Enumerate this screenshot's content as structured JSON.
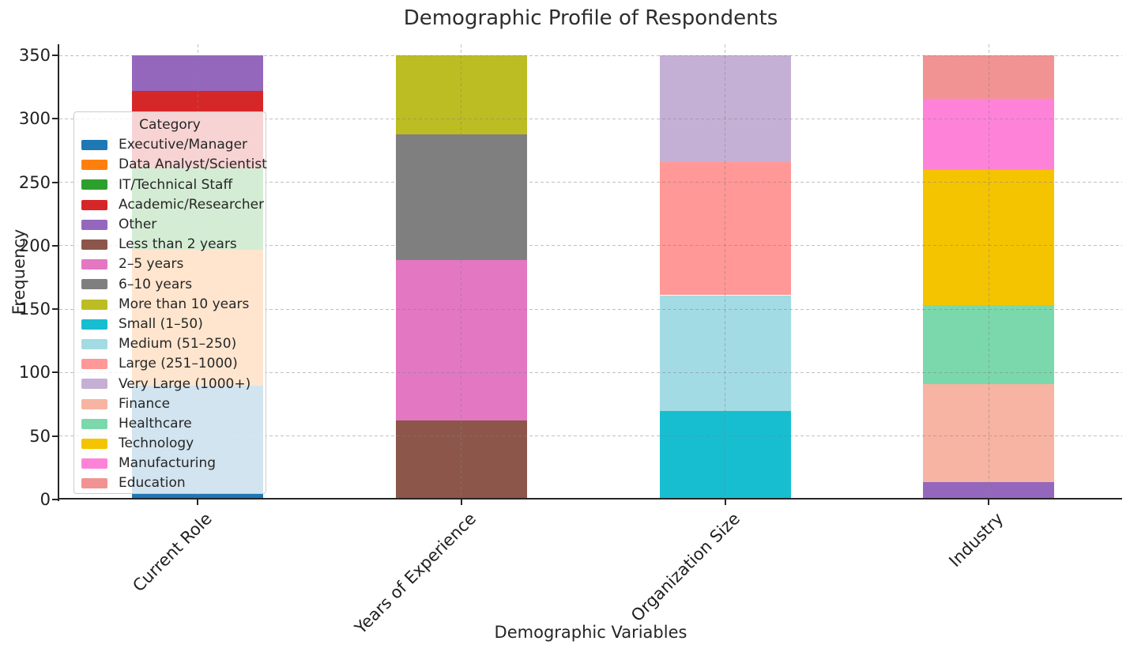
{
  "figure": {
    "title": "Demographic Profile of Respondents",
    "xlabel": "Demographic Variables",
    "ylabel": "Frequency"
  },
  "legend": {
    "title": "Category",
    "entries": [
      {
        "label": "Executive/Manager",
        "color": "#1f77b4"
      },
      {
        "label": "Data Analyst/Scientist",
        "color": "#ff7f0e"
      },
      {
        "label": "IT/Technical Staff",
        "color": "#2ca02c"
      },
      {
        "label": "Academic/Researcher",
        "color": "#d62728"
      },
      {
        "label": "Other",
        "color": "#9467bd"
      },
      {
        "label": "Less than 2 years",
        "color": "#8c564b"
      },
      {
        "label": "2–5 years",
        "color": "#e377c2"
      },
      {
        "label": "6–10 years",
        "color": "#7f7f7f"
      },
      {
        "label": "More than 10 years",
        "color": "#bcbd22"
      },
      {
        "label": "Small (1–50)",
        "color": "#17becf"
      },
      {
        "label": "Medium (51–250)",
        "color": "#a3dbe4"
      },
      {
        "label": "Large (251–1000)",
        "color": "#ff9896"
      },
      {
        "label": "Very Large (1000+)",
        "color": "#c5b0d5"
      },
      {
        "label": "Finance",
        "color": "#f7b4a2"
      },
      {
        "label": "Healthcare",
        "color": "#7bd8ac"
      },
      {
        "label": "Technology",
        "color": "#f4c400"
      },
      {
        "label": "Manufacturing",
        "color": "#ff82d9"
      },
      {
        "label": "Education",
        "color": "#f19392"
      }
    ]
  },
  "chart_data": {
    "type": "bar",
    "stacked": true,
    "title": "Demographic Profile of Respondents",
    "xlabel": "Demographic Variables",
    "ylabel": "Frequency",
    "ylim": [
      0,
      350
    ],
    "yticks": [
      0,
      50,
      100,
      150,
      200,
      250,
      300,
      350
    ],
    "grid": "dashed",
    "legend_title": "Category",
    "legend_position": "upper left",
    "total_per_bar": 350,
    "categories": [
      "Current Role",
      "Years of Experience",
      "Organization Size",
      "Industry"
    ],
    "series": [
      {
        "name": "Executive/Manager",
        "color": "#1f77b4",
        "values": [
          90,
          0,
          0,
          0
        ]
      },
      {
        "name": "Data Analyst/Scientist",
        "color": "#ff7f0e",
        "values": [
          107,
          0,
          0,
          0
        ]
      },
      {
        "name": "IT/Technical Staff",
        "color": "#2ca02c",
        "values": [
          64,
          0,
          0,
          0
        ]
      },
      {
        "name": "Academic/Researcher",
        "color": "#d62728",
        "values": [
          61,
          0,
          0,
          0
        ]
      },
      {
        "name": "Other",
        "color": "#9467bd",
        "values": [
          28,
          0,
          0,
          14
        ]
      },
      {
        "name": "Less than 2 years",
        "color": "#8c564b",
        "values": [
          0,
          62,
          0,
          0
        ]
      },
      {
        "name": "2–5 years",
        "color": "#e377c2",
        "values": [
          0,
          127,
          0,
          0
        ]
      },
      {
        "name": "6–10 years",
        "color": "#7f7f7f",
        "values": [
          0,
          99,
          0,
          0
        ]
      },
      {
        "name": "More than 10 years",
        "color": "#bcbd22",
        "values": [
          0,
          62,
          0,
          0
        ]
      },
      {
        "name": "Small (1–50)",
        "color": "#17becf",
        "values": [
          0,
          0,
          70,
          0
        ]
      },
      {
        "name": "Medium (51–250)",
        "color": "#a3dbe4",
        "values": [
          0,
          0,
          91,
          0
        ]
      },
      {
        "name": "Large (251–1000)",
        "color": "#ff9896",
        "values": [
          0,
          0,
          105,
          0
        ]
      },
      {
        "name": "Very Large (1000+)",
        "color": "#c5b0d5",
        "values": [
          0,
          0,
          84,
          0
        ]
      },
      {
        "name": "Finance",
        "color": "#f7b4a2",
        "values": [
          0,
          0,
          0,
          77
        ]
      },
      {
        "name": "Healthcare",
        "color": "#7bd8ac",
        "values": [
          0,
          0,
          0,
          62
        ]
      },
      {
        "name": "Technology",
        "color": "#f4c400",
        "values": [
          0,
          0,
          0,
          107
        ]
      },
      {
        "name": "Manufacturing",
        "color": "#ff82d9",
        "values": [
          0,
          0,
          0,
          56
        ]
      },
      {
        "name": "Education",
        "color": "#f19392",
        "values": [
          0,
          0,
          0,
          34
        ]
      }
    ]
  }
}
